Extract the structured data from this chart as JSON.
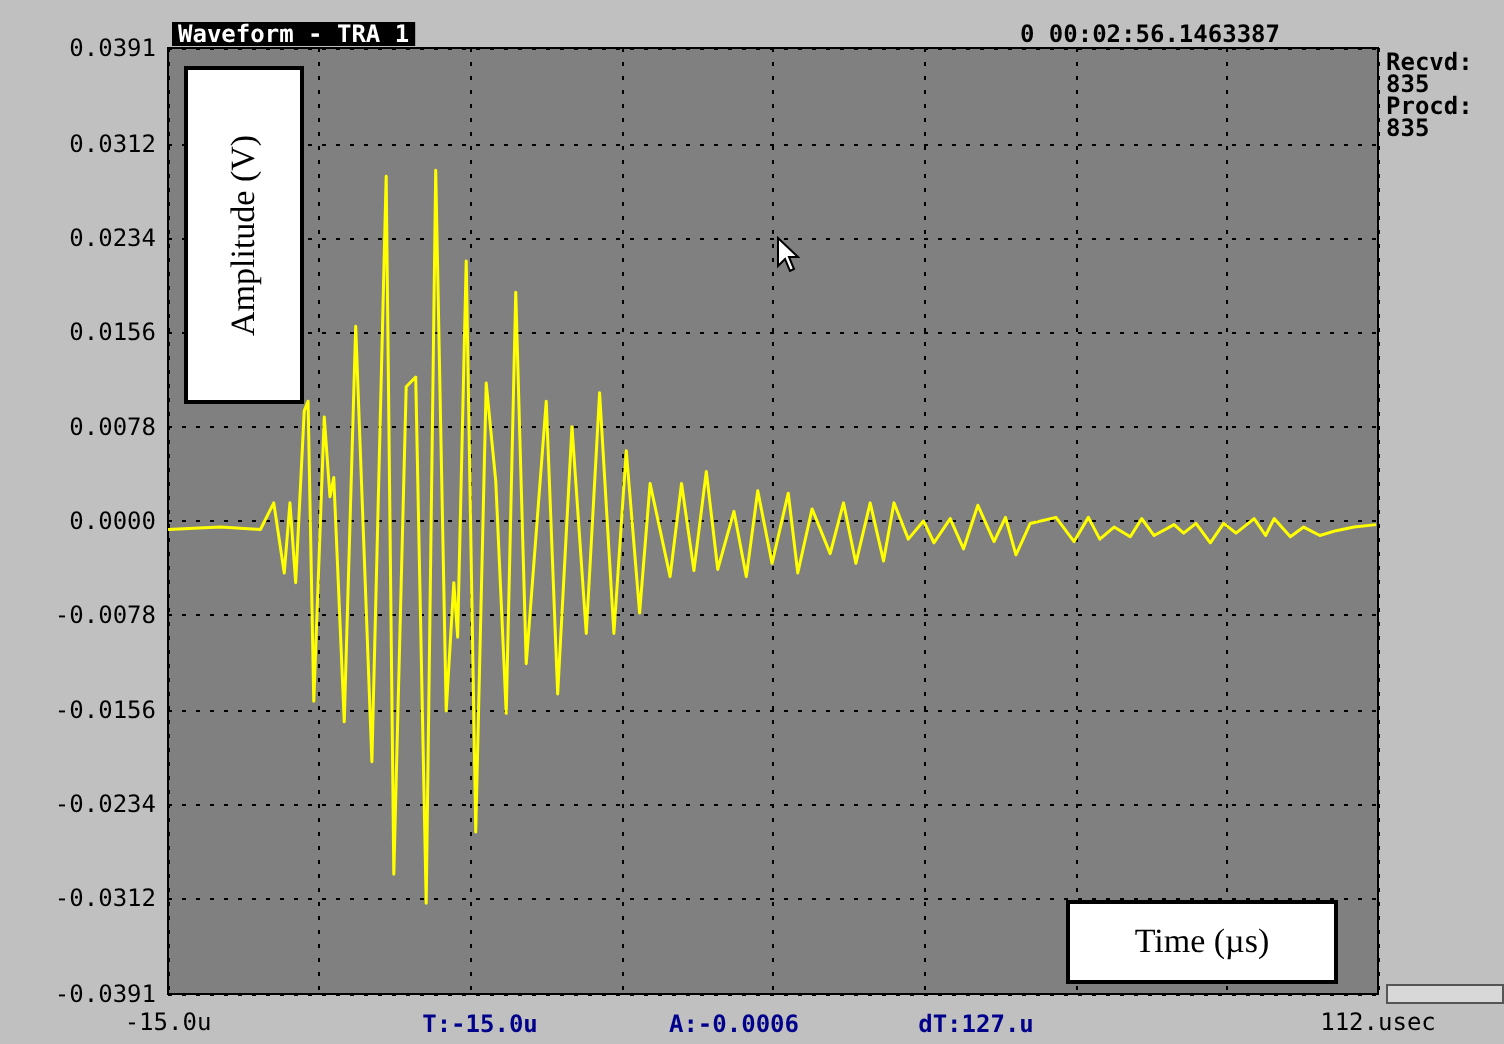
{
  "chart_data": {
    "type": "line",
    "title": "Waveform - TRA 1",
    "xlabel": "Time (µs)",
    "ylabel": "Amplitude (V)",
    "annotations": [
      "0 00:02:56.1463387",
      "Recvd:",
      "835",
      "Procd:",
      "835",
      "T:-15.0u",
      "A:-0.0006",
      "dT:127.u"
    ],
    "x": [
      -15.0,
      -9.5,
      -5.3,
      -3.9,
      -2.8,
      -2.2,
      -1.6,
      -0.7,
      -0.3,
      0.3,
      1.4,
      2.0,
      2.4,
      3.5,
      4.7,
      6.4,
      7.9,
      8.7,
      10.0,
      11.0,
      12.1,
      13.1,
      14.2,
      15.0,
      15.4,
      16.3,
      17.3,
      18.4,
      19.4,
      20.5,
      21.5,
      22.6,
      24.7,
      25.9,
      27.4,
      28.9,
      30.3,
      31.8,
      33.1,
      34.5,
      35.6,
      37.7,
      38.9,
      40.2,
      41.5,
      42.7,
      44.4,
      45.7,
      46.9,
      48.4,
      50.1,
      51.1,
      52.6,
      54.5,
      55.9,
      57.2,
      58.7,
      60.1,
      61.2,
      62.7,
      64.3,
      65.4,
      67.1,
      68.5,
      70.0,
      71.7,
      72.9,
      74.0,
      75.5,
      78.2,
      80.1,
      81.6,
      82.8,
      84.3,
      86.0,
      87.2,
      88.5,
      90.6,
      91.6,
      92.9,
      94.4,
      95.8,
      97.1,
      99.0,
      100.2,
      101.1,
      102.8,
      104.2,
      105.9,
      107.6,
      109.5,
      111.8
    ],
    "series": [
      {
        "color": "#ffff00",
        "values": [
          -0.0007,
          -0.0005,
          -0.0007,
          0.0015,
          -0.0043,
          0.0015,
          -0.0051,
          0.0091,
          0.0099,
          -0.0149,
          0.0086,
          0.002,
          0.0036,
          -0.0166,
          0.0161,
          -0.0199,
          0.0285,
          -0.0292,
          0.0111,
          0.0119,
          -0.0316,
          0.029,
          -0.0157,
          -0.0051,
          -0.0096,
          0.0215,
          -0.0257,
          0.0114,
          0.0033,
          -0.0159,
          0.0189,
          -0.0118,
          0.0099,
          -0.0143,
          0.0078,
          -0.0093,
          0.0106,
          -0.0093,
          0.0058,
          -0.0076,
          0.0031,
          -0.0046,
          0.0031,
          -0.0041,
          0.0041,
          -0.004,
          0.0008,
          -0.0046,
          0.0025,
          -0.0035,
          0.0023,
          -0.0043,
          0.001,
          -0.0027,
          0.0015,
          -0.0035,
          0.0015,
          -0.0033,
          0.0015,
          -0.0015,
          0.0,
          -0.0018,
          0.0002,
          -0.0023,
          0.0013,
          -0.0017,
          0.0003,
          -0.0028,
          -0.0002,
          0.0003,
          -0.0017,
          0.0003,
          -0.0015,
          -0.0005,
          -0.0013,
          0.0002,
          -0.0012,
          -0.0003,
          -0.001,
          -0.0002,
          -0.0018,
          -0.0002,
          -0.001,
          0.0002,
          -0.0012,
          0.0002,
          -0.0013,
          -0.0005,
          -0.0012,
          -0.0008,
          -0.0005,
          -0.0003
        ]
      }
    ],
    "xlim": [
      -15,
      112
    ],
    "xticks": [
      {
        "value": -15,
        "label": "-15.0u"
      },
      {
        "value": 0.875,
        "label": null
      },
      {
        "value": 16.75,
        "label": null
      },
      {
        "value": 32.625,
        "label": null
      },
      {
        "value": 48.5,
        "label": null
      },
      {
        "value": 64.375,
        "label": null
      },
      {
        "value": 80.25,
        "label": null
      },
      {
        "value": 96.125,
        "label": null
      },
      {
        "value": 112,
        "label": "112.usec"
      }
    ],
    "ylim": [
      -0.0391,
      0.0391
    ],
    "yticks": [
      -0.0391,
      -0.0312,
      -0.0234,
      -0.0156,
      -0.0078,
      {
        "value": 0,
        "label": "0.0000"
      },
      0.0078,
      0.0156,
      0.0234,
      0.0312,
      0.0391
    ],
    "grid": true,
    "marker": "none",
    "line_style": "solid"
  }
}
